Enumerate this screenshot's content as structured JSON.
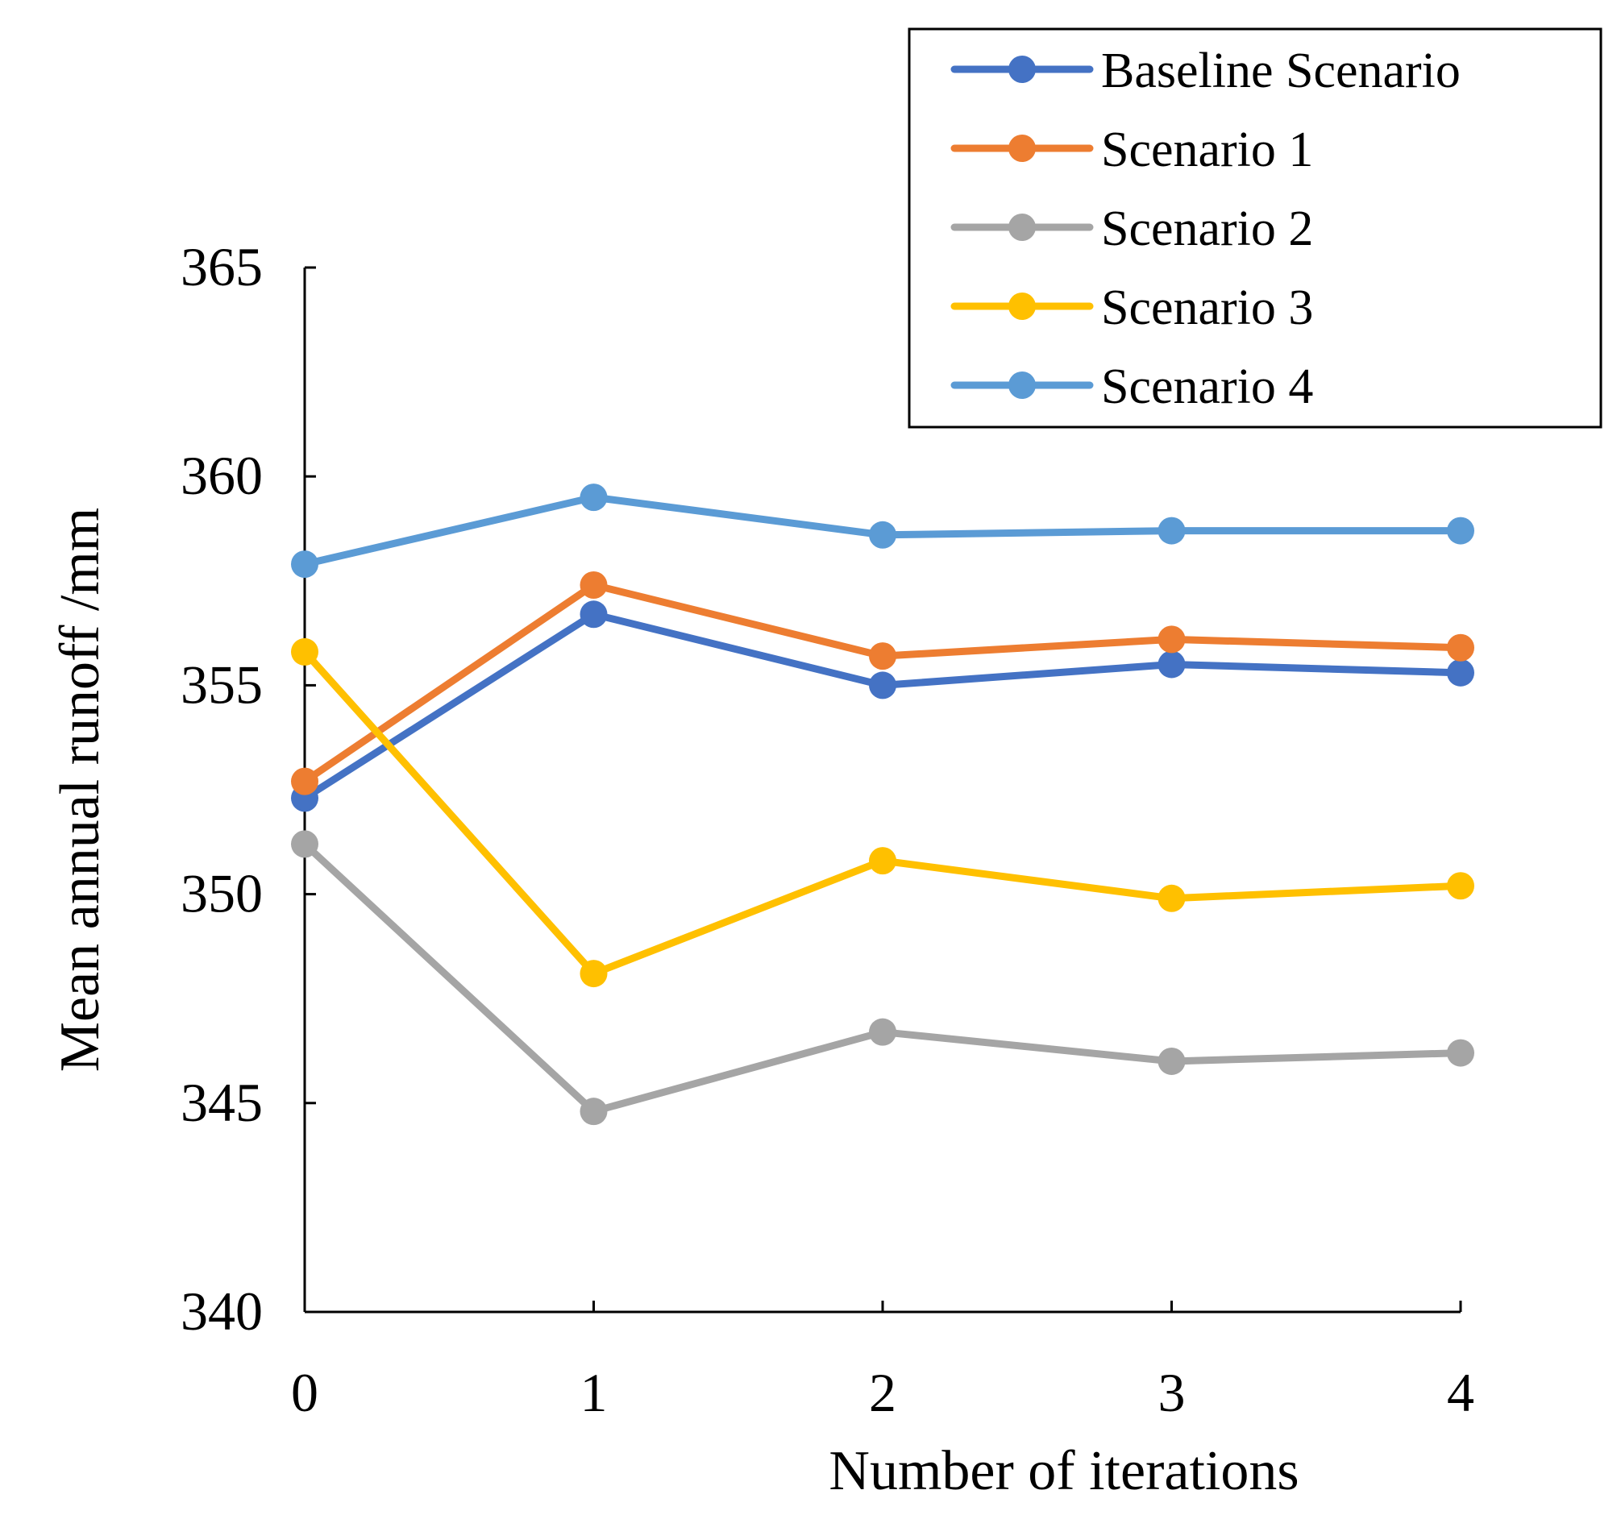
{
  "chart_data": {
    "type": "line",
    "title": "",
    "xlabel": "Number of iterations",
    "ylabel": "Mean annual runoff /mm",
    "x": [
      0,
      1,
      2,
      3,
      4
    ],
    "x_tick_labels": [
      "0",
      "1",
      "2",
      "3",
      "4"
    ],
    "y_ticks": [
      340,
      345,
      350,
      355,
      360,
      365
    ],
    "y_tick_labels": [
      "340",
      "345",
      "350",
      "355",
      "360",
      "365"
    ],
    "xlim": [
      0,
      4
    ],
    "ylim": [
      340,
      365
    ],
    "grid": false,
    "legend_position": "top-right",
    "series": [
      {
        "name": "Baseline Scenario",
        "color": "#4472C4",
        "values": [
          352.3,
          356.7,
          355.0,
          355.5,
          355.3
        ]
      },
      {
        "name": "Scenario 1",
        "color": "#ED7D31",
        "values": [
          352.7,
          357.4,
          355.7,
          356.1,
          355.9
        ]
      },
      {
        "name": "Scenario 2",
        "color": "#A5A5A5",
        "values": [
          351.2,
          344.8,
          346.7,
          346.0,
          346.2
        ]
      },
      {
        "name": "Scenario 3",
        "color": "#FFC000",
        "values": [
          355.8,
          348.1,
          350.8,
          349.9,
          350.2
        ]
      },
      {
        "name": "Scenario 4",
        "color": "#5B9BD5",
        "values": [
          357.9,
          359.5,
          358.6,
          358.7,
          358.7
        ]
      }
    ]
  }
}
